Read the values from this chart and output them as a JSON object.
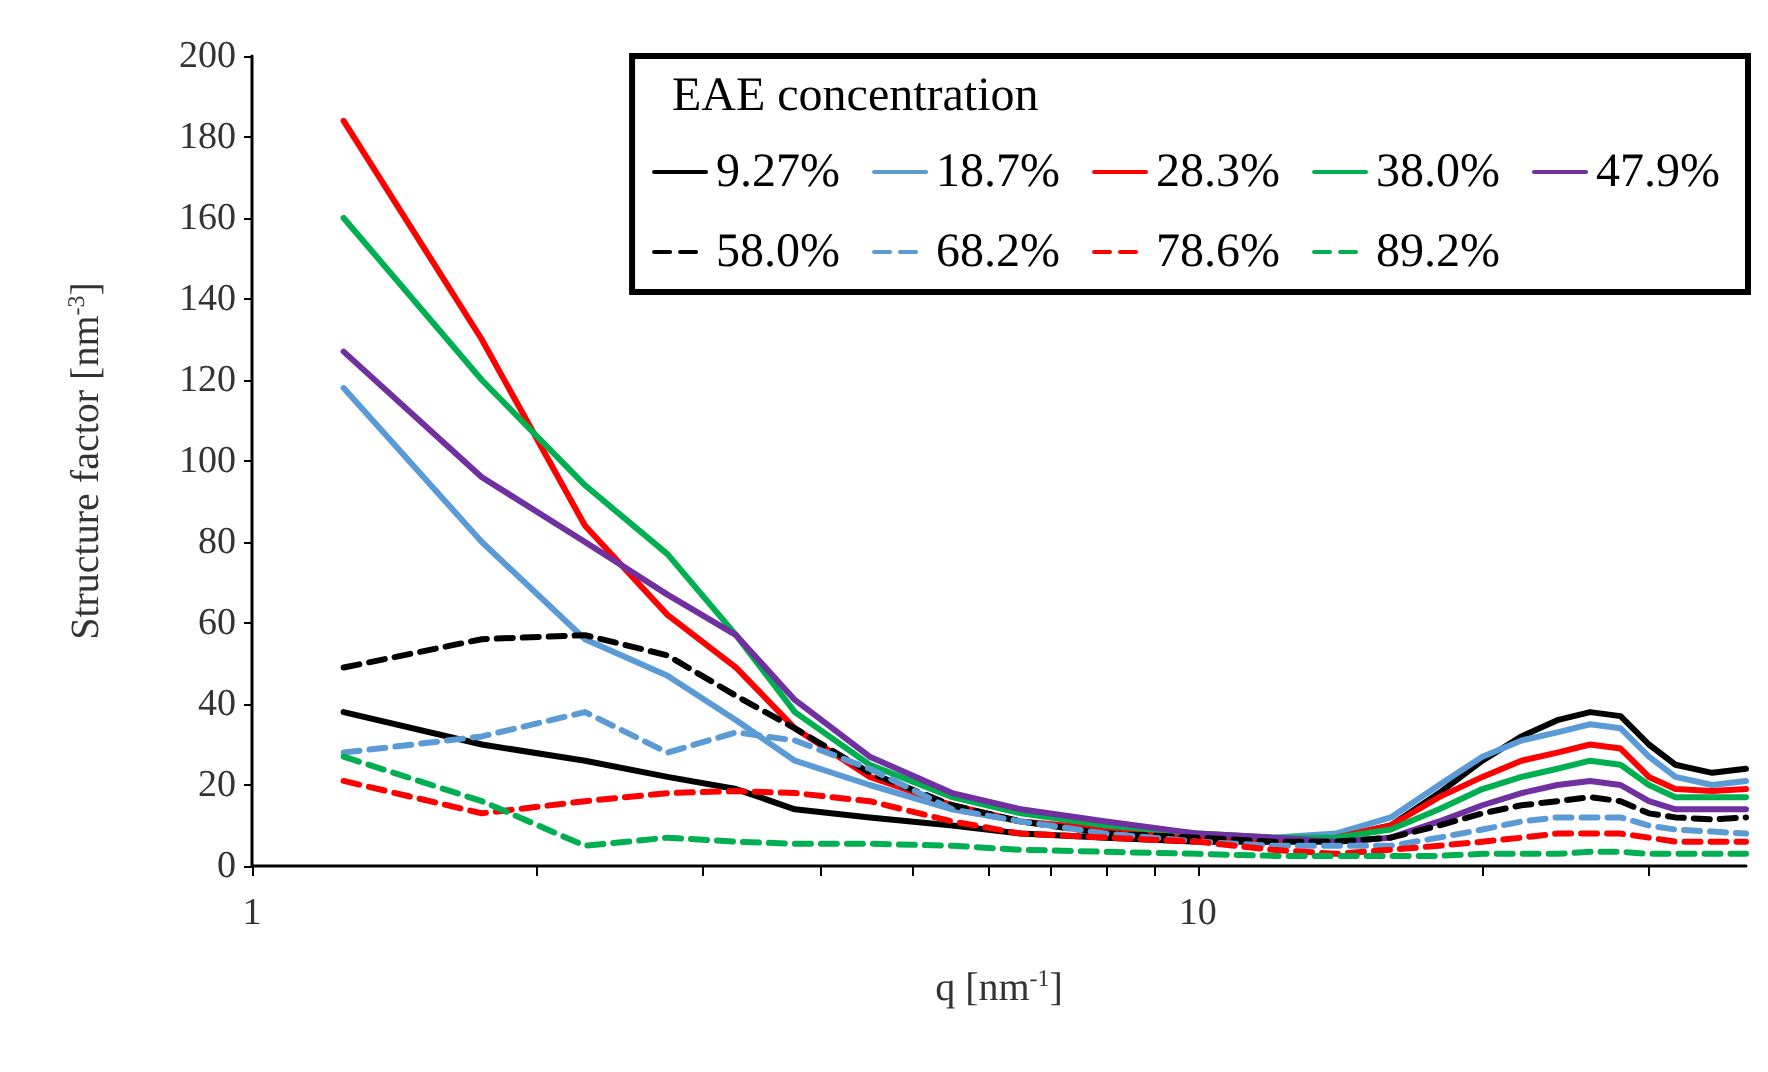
{
  "chart_data": {
    "type": "line",
    "xlabel": "q [nm$^{-1}$]",
    "ylabel": "Structure factor [nm$^{-3}$]",
    "legend_title": "EAE concentration",
    "legend": "top right",
    "log": "x",
    "grid": false,
    "marker": "none",
    "x": [
      1.25,
      1.75,
      2.25,
      2.75,
      3.25,
      3.75,
      4.5,
      5.5,
      6.5,
      8,
      10,
      12,
      14,
      16,
      18,
      20,
      22,
      24,
      26,
      28,
      30,
      32,
      35,
      38
    ],
    "xlim": [
      1,
      38
    ],
    "xticks": [
      1,
      {
        "value": 2,
        "label": null
      },
      {
        "value": 3,
        "label": null
      },
      {
        "value": 4,
        "label": null
      },
      {
        "value": 5,
        "label": null
      },
      {
        "value": 6,
        "label": null
      },
      {
        "value": 7,
        "label": null
      },
      {
        "value": 8,
        "label": null
      },
      {
        "value": 9,
        "label": null
      },
      10,
      {
        "value": 20,
        "label": null
      },
      {
        "value": 30,
        "label": null
      }
    ],
    "ylim": [
      0,
      200
    ],
    "yticks": [
      0,
      20,
      40,
      60,
      80,
      100,
      120,
      140,
      160,
      180,
      200
    ],
    "series": [
      {
        "name": "9.27%",
        "color": "#000000",
        "line_style": "solid",
        "values": [
          38,
          30,
          26,
          22,
          19,
          14,
          12,
          10,
          8,
          7,
          6,
          6,
          7,
          10,
          18,
          26,
          32,
          36,
          38,
          37,
          30,
          25,
          23,
          24
        ]
      },
      {
        "name": "18.7%",
        "color": "#5b9bd5",
        "line_style": "solid",
        "values": [
          118,
          80,
          56,
          47,
          36,
          26,
          20,
          14,
          11,
          9,
          7,
          7,
          8,
          12,
          20,
          27,
          31,
          33,
          35,
          34,
          27,
          22,
          20,
          21
        ]
      },
      {
        "name": "28.3%",
        "color": "#ff0000",
        "line_style": "solid",
        "values": [
          184,
          130,
          84,
          62,
          49,
          34,
          22,
          15,
          11,
          9,
          7,
          6,
          7,
          10,
          17,
          22,
          26,
          28,
          30,
          29,
          22,
          19,
          18.5,
          19
        ]
      },
      {
        "name": "38.0%",
        "color": "#00b050",
        "line_style": "solid",
        "values": [
          160,
          120,
          94,
          77,
          57,
          38,
          25,
          17,
          13,
          10,
          8,
          7,
          7,
          9,
          14,
          19,
          22,
          24,
          26,
          25,
          20,
          17,
          17,
          17
        ]
      },
      {
        "name": "47.9%",
        "color": "#7030a0",
        "line_style": "solid",
        "values": [
          127,
          96,
          80,
          67,
          57,
          41,
          27,
          18,
          14,
          11,
          8,
          7,
          6,
          7,
          11,
          15,
          18,
          20,
          21,
          20,
          16,
          14,
          14,
          14
        ]
      },
      {
        "name": "58.0%",
        "color": "#000000",
        "line_style": "dashed",
        "values": [
          49,
          56,
          57,
          52,
          42,
          34,
          23,
          15,
          11,
          8,
          7,
          6,
          6,
          7,
          10,
          13,
          15,
          16,
          17,
          16,
          13,
          12,
          11.5,
          12
        ]
      },
      {
        "name": "68.2%",
        "color": "#5b9bd5",
        "line_style": "dashed",
        "values": [
          28,
          32,
          38,
          28,
          33,
          31,
          24,
          14,
          11,
          8,
          6,
          5,
          5,
          5,
          7,
          9,
          11,
          12,
          12,
          12,
          10,
          9,
          8.5,
          8
        ]
      },
      {
        "name": "78.6%",
        "color": "#ff0000",
        "line_style": "dashed",
        "values": [
          21,
          13,
          16,
          18,
          18.5,
          18,
          16,
          11,
          8,
          7,
          6,
          4,
          3,
          4,
          5,
          6,
          7,
          8,
          8,
          8,
          7,
          6,
          6,
          6
        ]
      },
      {
        "name": "89.2%",
        "color": "#00b050",
        "line_style": "dashed",
        "values": [
          27,
          16,
          5,
          7,
          6,
          5.5,
          5.5,
          5,
          4,
          3.5,
          3,
          2.5,
          2.5,
          2.5,
          2.5,
          3,
          3,
          3,
          3.5,
          3.5,
          3,
          3,
          3,
          3
        ]
      }
    ]
  }
}
